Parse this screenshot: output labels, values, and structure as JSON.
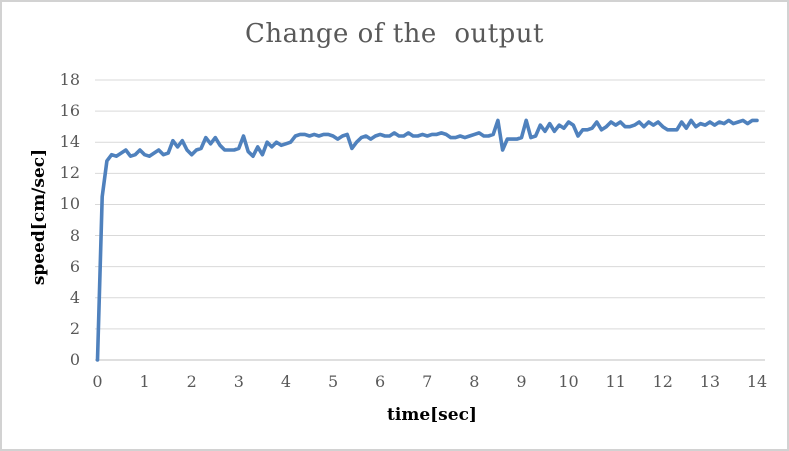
{
  "window": {
    "background_color": "#ffffff",
    "border_color": "#d2d2d2"
  },
  "chart_data": {
    "type": "line",
    "title": "Change of the  output",
    "xlabel": "time[sec]",
    "ylabel": "speed[cm/sec]",
    "legend_position": "none",
    "grid": "horizontal",
    "xlim": [
      0,
      14
    ],
    "ylim": [
      0,
      18
    ],
    "x_ticks": [
      0,
      1,
      2,
      3,
      4,
      5,
      6,
      7,
      8,
      9,
      10,
      11,
      12,
      13,
      14
    ],
    "y_ticks": [
      0,
      2,
      4,
      6,
      8,
      10,
      12,
      14,
      16,
      18
    ],
    "x": [
      0.0,
      0.1,
      0.2,
      0.3,
      0.4,
      0.5,
      0.6,
      0.7,
      0.8,
      0.9,
      1.0,
      1.1,
      1.2,
      1.3,
      1.4,
      1.5,
      1.6,
      1.7,
      1.8,
      1.9,
      2.0,
      2.1,
      2.2,
      2.3,
      2.4,
      2.5,
      2.6,
      2.7,
      2.8,
      2.9,
      3.0,
      3.1,
      3.2,
      3.3,
      3.4,
      3.5,
      3.6,
      3.7,
      3.8,
      3.9,
      4.0,
      4.1,
      4.2,
      4.3,
      4.4,
      4.5,
      4.6,
      4.7,
      4.8,
      4.9,
      5.0,
      5.1,
      5.2,
      5.3,
      5.4,
      5.5,
      5.6,
      5.7,
      5.8,
      5.9,
      6.0,
      6.1,
      6.2,
      6.3,
      6.4,
      6.5,
      6.6,
      6.7,
      6.8,
      6.9,
      7.0,
      7.1,
      7.2,
      7.3,
      7.4,
      7.5,
      7.6,
      7.7,
      7.8,
      7.9,
      8.0,
      8.1,
      8.2,
      8.3,
      8.4,
      8.5,
      8.6,
      8.7,
      8.8,
      8.9,
      9.0,
      9.1,
      9.2,
      9.3,
      9.4,
      9.5,
      9.6,
      9.7,
      9.8,
      9.9,
      10.0,
      10.1,
      10.2,
      10.3,
      10.4,
      10.5,
      10.6,
      10.7,
      10.8,
      10.9,
      11.0,
      11.1,
      11.2,
      11.3,
      11.4,
      11.5,
      11.6,
      11.7,
      11.8,
      11.9,
      12.0,
      12.1,
      12.2,
      12.3,
      12.4,
      12.5,
      12.6,
      12.7,
      12.8,
      12.9,
      13.0,
      13.1,
      13.2,
      13.3,
      13.4,
      13.5,
      13.6,
      13.7,
      13.8,
      13.9,
      14.0
    ],
    "series": [
      {
        "name": "speed",
        "color": "#4f81bd",
        "values": [
          0.0,
          10.5,
          12.8,
          13.2,
          13.1,
          13.3,
          13.5,
          13.1,
          13.2,
          13.5,
          13.2,
          13.1,
          13.3,
          13.5,
          13.2,
          13.3,
          14.1,
          13.7,
          14.1,
          13.5,
          13.2,
          13.5,
          13.6,
          14.3,
          13.9,
          14.3,
          13.8,
          13.5,
          13.5,
          13.5,
          13.6,
          14.4,
          13.4,
          13.1,
          13.7,
          13.2,
          14.0,
          13.7,
          14.0,
          13.8,
          13.9,
          14.0,
          14.4,
          14.5,
          14.5,
          14.4,
          14.5,
          14.4,
          14.5,
          14.5,
          14.4,
          14.2,
          14.4,
          14.5,
          13.6,
          14.0,
          14.3,
          14.4,
          14.2,
          14.4,
          14.5,
          14.4,
          14.4,
          14.6,
          14.4,
          14.4,
          14.6,
          14.4,
          14.4,
          14.5,
          14.4,
          14.5,
          14.5,
          14.6,
          14.5,
          14.3,
          14.3,
          14.4,
          14.3,
          14.4,
          14.5,
          14.6,
          14.4,
          14.4,
          14.5,
          15.4,
          13.5,
          14.2,
          14.2,
          14.2,
          14.3,
          15.4,
          14.3,
          14.4,
          15.1,
          14.7,
          15.2,
          14.7,
          15.1,
          14.9,
          15.3,
          15.1,
          14.4,
          14.8,
          14.8,
          14.9,
          15.3,
          14.8,
          15.0,
          15.3,
          15.1,
          15.3,
          15.0,
          15.0,
          15.1,
          15.3,
          15.0,
          15.3,
          15.1,
          15.3,
          15.0,
          14.8,
          14.8,
          14.8,
          15.3,
          14.9,
          15.4,
          15.0,
          15.2,
          15.1,
          15.3,
          15.1,
          15.3,
          15.2,
          15.4,
          15.2,
          15.3,
          15.4,
          15.2,
          15.4,
          15.4
        ]
      }
    ],
    "style": {
      "line_width": 3.6,
      "gridline_color": "#d9d9d9",
      "axis_line_color": "#bfbfbf",
      "tick_label_color": "#595959",
      "title_color": "#595959",
      "axis_title_color": "#000000"
    }
  }
}
